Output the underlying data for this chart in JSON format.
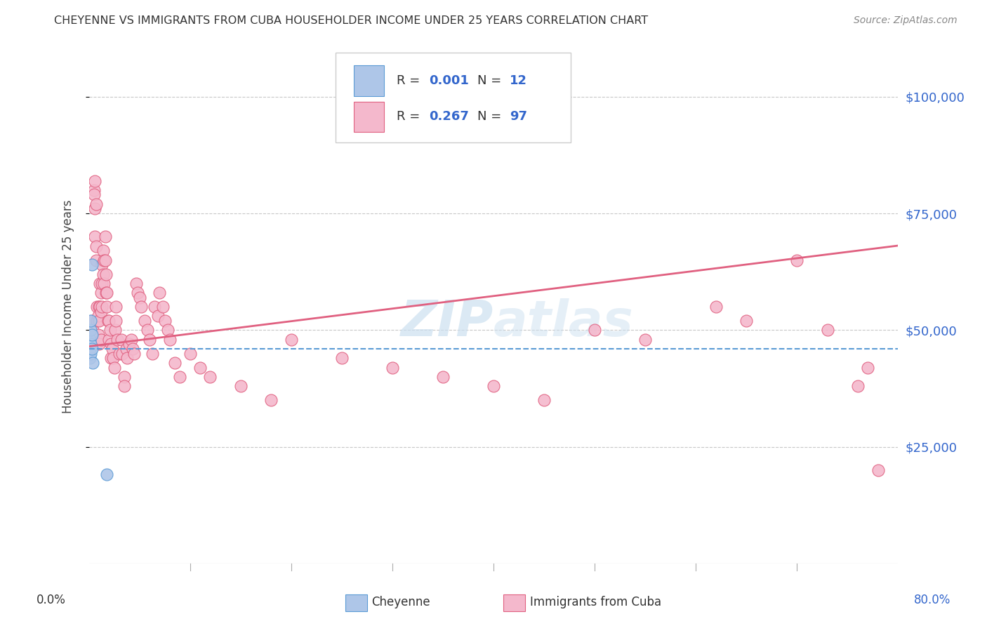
{
  "title": "CHEYENNE VS IMMIGRANTS FROM CUBA HOUSEHOLDER INCOME UNDER 25 YEARS CORRELATION CHART",
  "source": "Source: ZipAtlas.com",
  "ylabel": "Householder Income Under 25 years",
  "ytick_values": [
    25000,
    50000,
    75000,
    100000
  ],
  "cheyenne_color": "#aec6e8",
  "cheyenne_edge": "#5b9bd5",
  "cuba_color": "#f4b8cc",
  "cuba_edge": "#e06080",
  "line_cuba_color": "#e06080",
  "line_cheyenne_color": "#5b9bd5",
  "watermark_color": "#cce0f0",
  "xlim": [
    0.0,
    0.8
  ],
  "ylim": [
    0,
    110000
  ],
  "cheyenne_slope": 0,
  "cheyenne_intercept": 46000,
  "cuba_slope": 27000,
  "cuba_intercept": 46500,
  "cheyenne_x": [
    0.001,
    0.001,
    0.001,
    0.002,
    0.002,
    0.002,
    0.002,
    0.003,
    0.003,
    0.003,
    0.004,
    0.018
  ],
  "cheyenne_y": [
    46000,
    48000,
    44000,
    50000,
    52000,
    47000,
    45000,
    49000,
    46000,
    64000,
    43000,
    19000
  ],
  "cuba_x": [
    0.003,
    0.004,
    0.005,
    0.005,
    0.006,
    0.006,
    0.006,
    0.007,
    0.007,
    0.007,
    0.008,
    0.008,
    0.008,
    0.009,
    0.009,
    0.01,
    0.01,
    0.01,
    0.011,
    0.011,
    0.012,
    0.012,
    0.012,
    0.013,
    0.013,
    0.013,
    0.014,
    0.014,
    0.015,
    0.015,
    0.016,
    0.016,
    0.017,
    0.017,
    0.018,
    0.018,
    0.019,
    0.02,
    0.02,
    0.021,
    0.022,
    0.022,
    0.023,
    0.024,
    0.025,
    0.026,
    0.027,
    0.027,
    0.028,
    0.03,
    0.032,
    0.033,
    0.035,
    0.035,
    0.037,
    0.038,
    0.04,
    0.042,
    0.043,
    0.045,
    0.047,
    0.048,
    0.05,
    0.052,
    0.055,
    0.058,
    0.06,
    0.063,
    0.065,
    0.068,
    0.07,
    0.073,
    0.075,
    0.078,
    0.08,
    0.085,
    0.09,
    0.1,
    0.11,
    0.12,
    0.15,
    0.18,
    0.2,
    0.25,
    0.3,
    0.35,
    0.4,
    0.45,
    0.5,
    0.55,
    0.62,
    0.65,
    0.7,
    0.73,
    0.76,
    0.77,
    0.78
  ],
  "cuba_y": [
    52000,
    50000,
    80000,
    79000,
    82000,
    76000,
    70000,
    77000,
    68000,
    65000,
    55000,
    52000,
    48000,
    53000,
    49000,
    55000,
    52000,
    47000,
    60000,
    55000,
    58000,
    54000,
    48000,
    64000,
    60000,
    55000,
    67000,
    62000,
    65000,
    60000,
    70000,
    65000,
    62000,
    58000,
    58000,
    55000,
    52000,
    52000,
    48000,
    50000,
    47000,
    44000,
    46000,
    44000,
    42000,
    50000,
    55000,
    52000,
    48000,
    45000,
    48000,
    45000,
    40000,
    38000,
    46000,
    44000,
    47000,
    48000,
    46000,
    45000,
    60000,
    58000,
    57000,
    55000,
    52000,
    50000,
    48000,
    45000,
    55000,
    53000,
    58000,
    55000,
    52000,
    50000,
    48000,
    43000,
    40000,
    45000,
    42000,
    40000,
    38000,
    35000,
    48000,
    44000,
    42000,
    40000,
    38000,
    35000,
    50000,
    48000,
    55000,
    52000,
    65000,
    50000,
    38000,
    42000,
    20000
  ]
}
